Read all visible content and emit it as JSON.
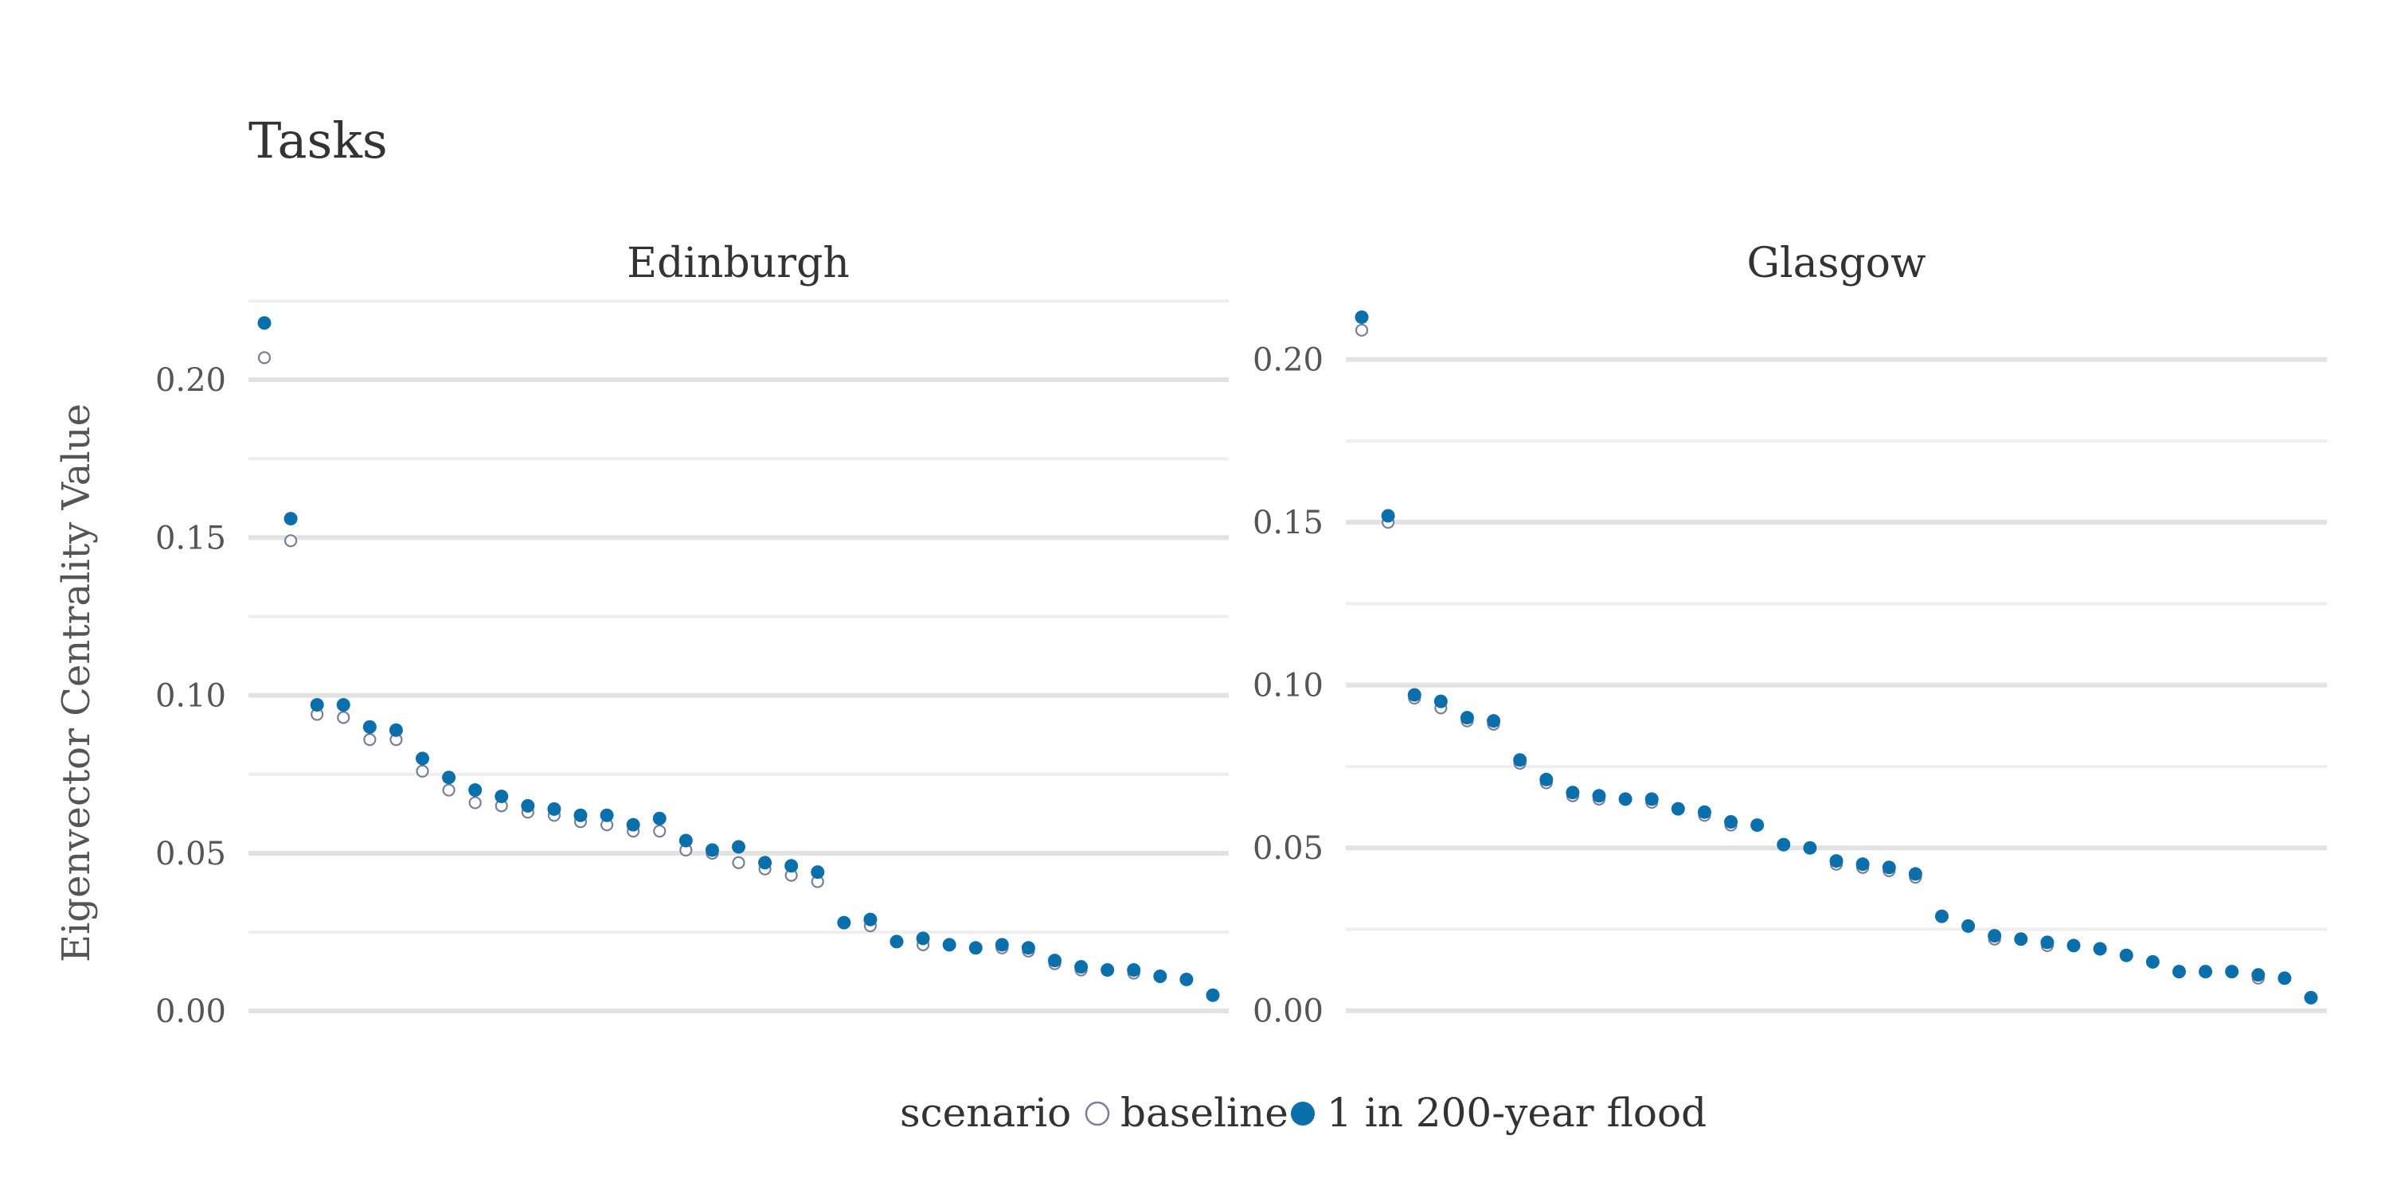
{
  "chart_data": {
    "type": "scatter",
    "title": "Tasks",
    "ylabel": "Eigenvector Centrality Value",
    "legend": {
      "title": "scenario",
      "entries": [
        "baseline",
        "1 in 200-year flood"
      ],
      "placement": "bottom"
    },
    "grid": true,
    "colors": {
      "baseline": "#ffffff",
      "baseline_stroke": "#7a7f9a",
      "flood": "#0b6fac"
    },
    "panels": [
      {
        "name": "Edinburgh",
        "ylim": [
          -0.003,
          0.225
        ],
        "yticks": [
          "0.00",
          "0.05",
          "0.10",
          "0.15",
          "0.20"
        ],
        "series": [
          {
            "name": "baseline",
            "values": [
              0.207,
              0.149,
              0.094,
              0.093,
              0.086,
              0.086,
              0.076,
              0.07,
              0.066,
              0.065,
              0.063,
              0.062,
              0.06,
              0.059,
              0.057,
              0.057,
              0.051,
              0.05,
              0.047,
              0.045,
              0.043,
              0.041,
              0.028,
              0.027,
              0.022,
              0.021,
              0.021,
              0.02,
              0.02,
              0.019,
              0.015,
              0.013,
              0.013,
              0.012,
              0.011,
              0.01,
              0.005
            ]
          },
          {
            "name": "1 in 200-year flood",
            "values": [
              0.218,
              0.156,
              0.097,
              0.097,
              0.09,
              0.089,
              0.08,
              0.074,
              0.07,
              0.068,
              0.065,
              0.064,
              0.062,
              0.062,
              0.059,
              0.061,
              0.054,
              0.051,
              0.052,
              0.047,
              0.046,
              0.044,
              0.028,
              0.029,
              0.022,
              0.023,
              0.021,
              0.02,
              0.021,
              0.02,
              0.016,
              0.014,
              0.013,
              0.013,
              0.011,
              0.01,
              0.005
            ]
          }
        ]
      },
      {
        "name": "Glasgow",
        "ylim": [
          -0.003,
          0.218
        ],
        "yticks": [
          "0.00",
          "0.05",
          "0.10",
          "0.15",
          "0.20"
        ],
        "series": [
          {
            "name": "baseline",
            "values": [
              0.209,
              0.15,
              0.096,
              0.093,
              0.089,
              0.088,
              0.076,
              0.07,
              0.066,
              0.065,
              0.065,
              0.064,
              0.062,
              0.06,
              0.057,
              0.057,
              0.051,
              0.05,
              0.045,
              0.044,
              0.043,
              0.041,
              0.029,
              0.026,
              0.022,
              0.022,
              0.02,
              0.02,
              0.019,
              0.017,
              0.015,
              0.012,
              0.012,
              0.012,
              0.01,
              0.01,
              0.004
            ]
          },
          {
            "name": "1 in 200-year flood",
            "values": [
              0.213,
              0.152,
              0.097,
              0.095,
              0.09,
              0.089,
              0.077,
              0.071,
              0.067,
              0.066,
              0.065,
              0.065,
              0.062,
              0.061,
              0.058,
              0.057,
              0.051,
              0.05,
              0.046,
              0.045,
              0.044,
              0.042,
              0.029,
              0.026,
              0.023,
              0.022,
              0.021,
              0.02,
              0.019,
              0.017,
              0.015,
              0.012,
              0.012,
              0.012,
              0.011,
              0.01,
              0.004
            ]
          }
        ]
      }
    ]
  }
}
